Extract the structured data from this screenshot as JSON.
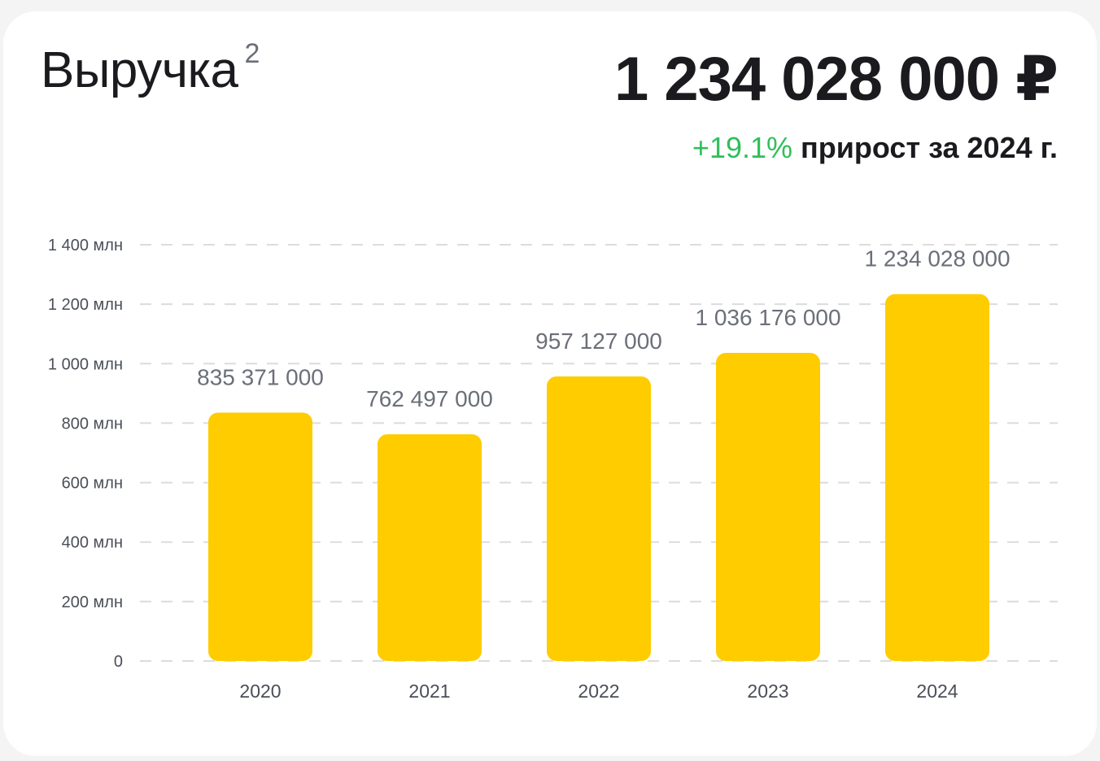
{
  "header": {
    "title": "Выручка",
    "title_footnote": "2",
    "total_value": "1 234 028 000 ₽",
    "growth_pct": "+19.1%",
    "growth_text": "прирост за 2024 г."
  },
  "colors": {
    "bar": "#FFCC00",
    "growth": "#2FBF5B",
    "grid": "#DCDCDC",
    "tick_label": "#4A4E57",
    "data_label": "#6B6F78"
  },
  "chart_data": {
    "type": "bar",
    "categories": [
      "2020",
      "2021",
      "2022",
      "2023",
      "2024"
    ],
    "values": [
      835371000,
      762497000,
      957127000,
      1036176000,
      1234028000
    ],
    "data_labels": [
      "835 371 000",
      "762 497 000",
      "957 127 000",
      "1 036 176 000",
      "1 234 028 000"
    ],
    "title": "Выручка",
    "xlabel": "",
    "ylabel": "",
    "ylim": [
      0,
      1400000000
    ],
    "y_ticks": [
      0,
      200000000,
      400000000,
      600000000,
      800000000,
      1000000000,
      1200000000,
      1400000000
    ],
    "y_tick_labels": [
      "0",
      "200 млн",
      "400 млн",
      "600 млн",
      "800 млн",
      "1 000 млн",
      "1 200 млн",
      "1 400 млн"
    ],
    "grid": true,
    "legend": "none"
  }
}
